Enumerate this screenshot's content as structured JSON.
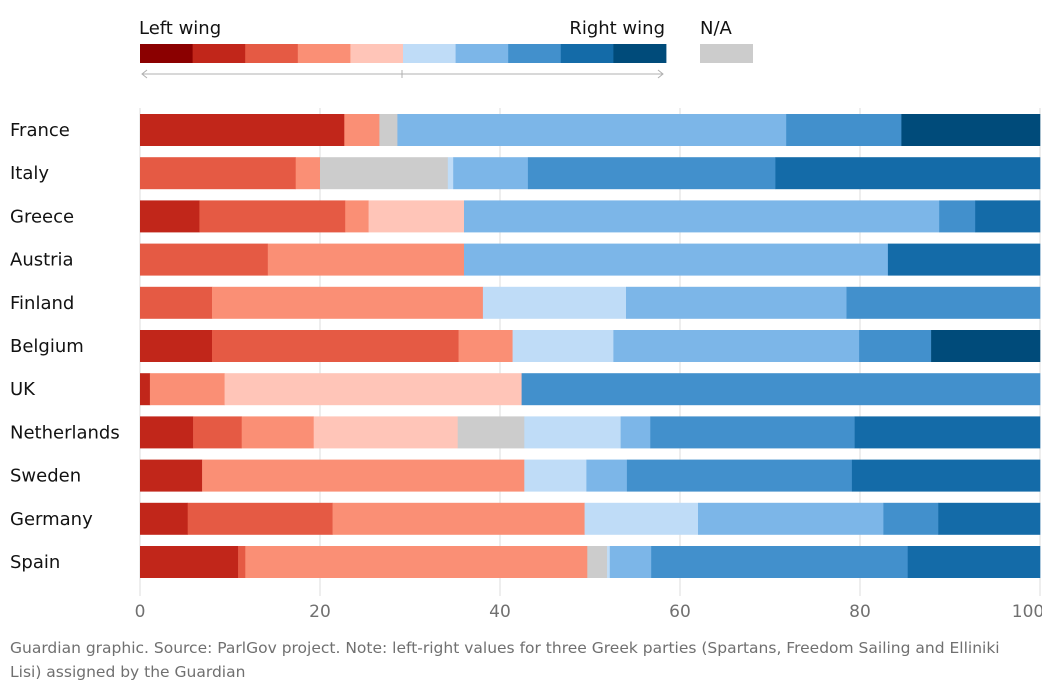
{
  "legend": {
    "left_label": "Left wing",
    "right_label": "Right wing",
    "na_label": "N/A",
    "scale_colors": [
      "#8b0000",
      "#c1261a",
      "#e55a44",
      "#fa8f75",
      "#ffc5b8",
      "#bfdcf7",
      "#7cb6e8",
      "#4290cc",
      "#146ba8",
      "#004b7a"
    ],
    "na_color": "#cccccc"
  },
  "chart_data": {
    "type": "bar",
    "orientation": "horizontal",
    "stacked": true,
    "xlim": [
      0,
      100
    ],
    "xticks": [
      0,
      20,
      40,
      60,
      80,
      100
    ],
    "grid": "vertical",
    "legend_position": "top",
    "categories": [
      "France",
      "Italy",
      "Greece",
      "Austria",
      "Finland",
      "Belgium",
      "UK",
      "Netherlands",
      "Sweden",
      "Germany",
      "Spain"
    ],
    "colors": [
      "#8b0000",
      "#c1261a",
      "#e55a44",
      "#fa8f75",
      "#ffc5b8",
      "#bfdcf7",
      "#7cb6e8",
      "#4290cc",
      "#146ba8",
      "#004b7a",
      "#cccccc"
    ],
    "rows": [
      {
        "country": "France",
        "segments": [
          {
            "c": 1,
            "v": 22.7
          },
          {
            "c": 3,
            "v": 3.9
          },
          {
            "c": 10,
            "v": 2.0
          },
          {
            "c": 6,
            "v": 43.2
          },
          {
            "c": 7,
            "v": 12.8
          },
          {
            "c": 9,
            "v": 15.4
          }
        ]
      },
      {
        "country": "Italy",
        "segments": [
          {
            "c": 2,
            "v": 17.3
          },
          {
            "c": 3,
            "v": 2.7
          },
          {
            "c": 10,
            "v": 14.2
          },
          {
            "c": 5,
            "v": 0.6
          },
          {
            "c": 6,
            "v": 8.3
          },
          {
            "c": 7,
            "v": 27.5
          },
          {
            "c": 8,
            "v": 29.4
          }
        ]
      },
      {
        "country": "Greece",
        "segments": [
          {
            "c": 1,
            "v": 6.6
          },
          {
            "c": 2,
            "v": 16.2
          },
          {
            "c": 3,
            "v": 2.6
          },
          {
            "c": 4,
            "v": 10.6
          },
          {
            "c": 6,
            "v": 52.8
          },
          {
            "c": 7,
            "v": 4.0
          },
          {
            "c": 8,
            "v": 7.2
          }
        ]
      },
      {
        "country": "Austria",
        "segments": [
          {
            "c": 2,
            "v": 14.2
          },
          {
            "c": 3,
            "v": 21.8
          },
          {
            "c": 6,
            "v": 47.1
          },
          {
            "c": 8,
            "v": 16.9
          }
        ]
      },
      {
        "country": "Finland",
        "segments": [
          {
            "c": 2,
            "v": 8.0
          },
          {
            "c": 3,
            "v": 30.1
          },
          {
            "c": 5,
            "v": 15.9
          },
          {
            "c": 6,
            "v": 24.5
          },
          {
            "c": 7,
            "v": 21.5
          }
        ]
      },
      {
        "country": "Belgium",
        "segments": [
          {
            "c": 1,
            "v": 8.0
          },
          {
            "c": 2,
            "v": 27.4
          },
          {
            "c": 3,
            "v": 6.0
          },
          {
            "c": 5,
            "v": 11.2
          },
          {
            "c": 6,
            "v": 27.3
          },
          {
            "c": 7,
            "v": 8.0
          },
          {
            "c": 9,
            "v": 12.1
          }
        ]
      },
      {
        "country": "UK",
        "segments": [
          {
            "c": 1,
            "v": 1.1
          },
          {
            "c": 3,
            "v": 8.3
          },
          {
            "c": 4,
            "v": 33.0
          },
          {
            "c": 7,
            "v": 57.6
          }
        ]
      },
      {
        "country": "Netherlands",
        "segments": [
          {
            "c": 1,
            "v": 5.9
          },
          {
            "c": 2,
            "v": 5.4
          },
          {
            "c": 3,
            "v": 8.0
          },
          {
            "c": 4,
            "v": 16.0
          },
          {
            "c": 10,
            "v": 7.4
          },
          {
            "c": 5,
            "v": 10.7
          },
          {
            "c": 6,
            "v": 3.3
          },
          {
            "c": 7,
            "v": 22.7
          },
          {
            "c": 8,
            "v": 20.6
          }
        ]
      },
      {
        "country": "Sweden",
        "segments": [
          {
            "c": 1,
            "v": 6.9
          },
          {
            "c": 3,
            "v": 35.8
          },
          {
            "c": 5,
            "v": 6.9
          },
          {
            "c": 6,
            "v": 4.5
          },
          {
            "c": 7,
            "v": 25.0
          },
          {
            "c": 8,
            "v": 20.9
          }
        ]
      },
      {
        "country": "Germany",
        "segments": [
          {
            "c": 1,
            "v": 5.3
          },
          {
            "c": 2,
            "v": 16.1
          },
          {
            "c": 3,
            "v": 28.0
          },
          {
            "c": 5,
            "v": 12.6
          },
          {
            "c": 6,
            "v": 20.6
          },
          {
            "c": 7,
            "v": 6.1
          },
          {
            "c": 8,
            "v": 11.3
          }
        ]
      },
      {
        "country": "Spain",
        "segments": [
          {
            "c": 1,
            "v": 10.9
          },
          {
            "c": 2,
            "v": 0.8
          },
          {
            "c": 3,
            "v": 38.0
          },
          {
            "c": 10,
            "v": 2.2
          },
          {
            "c": 5,
            "v": 0.3
          },
          {
            "c": 6,
            "v": 4.6
          },
          {
            "c": 7,
            "v": 28.5
          },
          {
            "c": 8,
            "v": 14.7
          }
        ]
      }
    ]
  },
  "footer": {
    "text": "Guardian graphic. Source: ParlGov project. Note: left-right values for three Greek parties (Spartans, Freedom Sailing and Elliniki Lisi) assigned by the Guardian"
  }
}
